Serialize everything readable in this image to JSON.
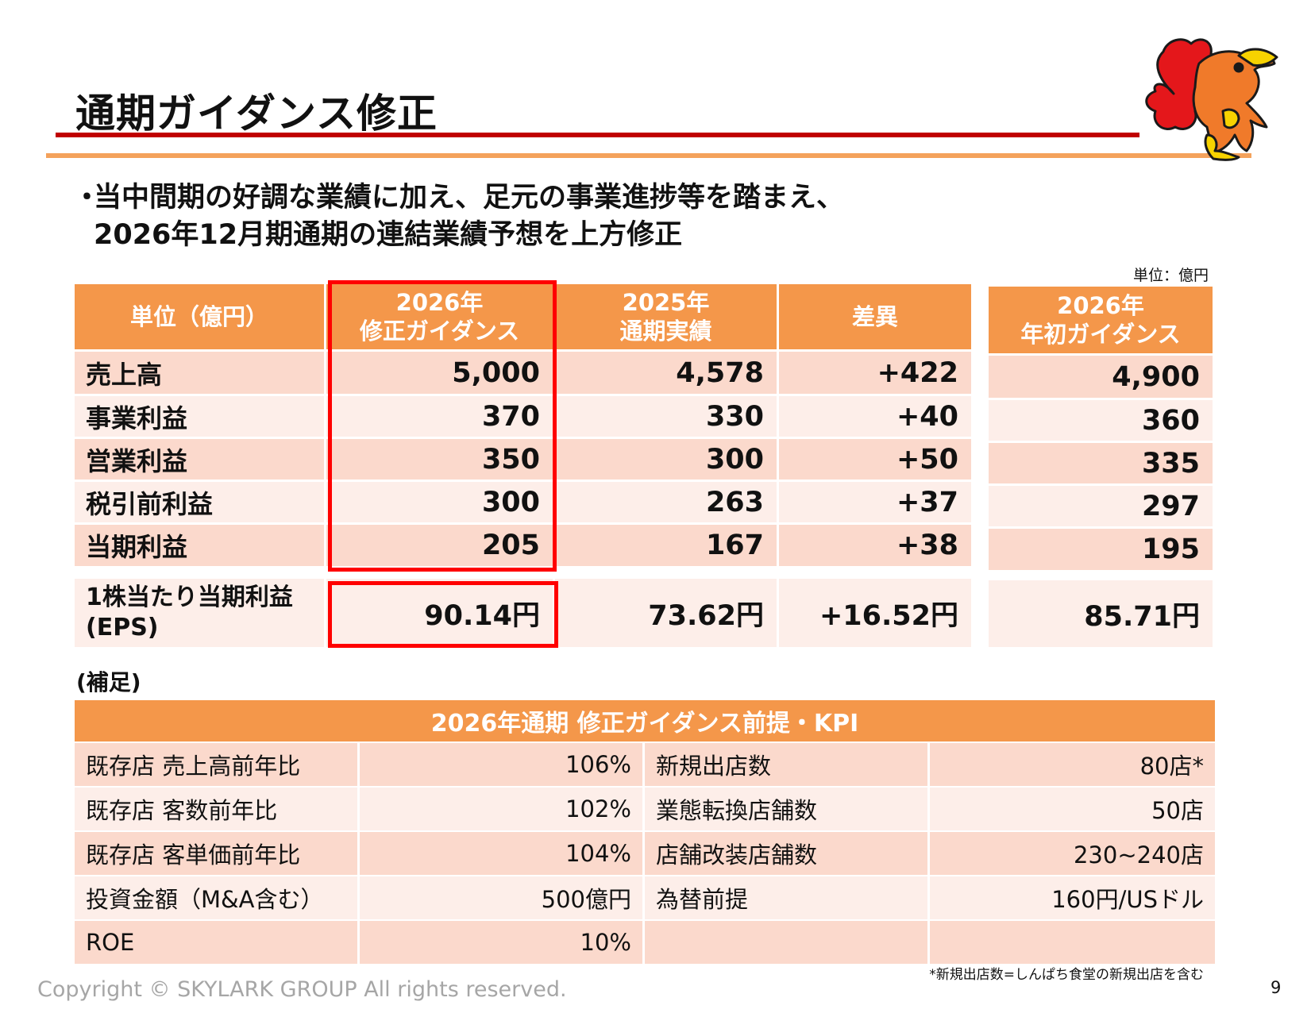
{
  "title": "通期ガイダンス修正",
  "bullet": {
    "marker": "・",
    "line1": "当中間期の好調な業績に加え、足元の事業進捗等を踏まえ、",
    "line2": "2026年12月期通期の連結業績予想を上方修正"
  },
  "unit_note": "単位：億円",
  "main_table": {
    "headers": [
      {
        "line1": "単位（億円）",
        "line2": ""
      },
      {
        "line1": "2026年",
        "line2": "修正ガイダンス"
      },
      {
        "line1": "2025年",
        "line2": "通期実績"
      },
      {
        "line1": "差異",
        "line2": ""
      }
    ],
    "rows": [
      {
        "label": "売上高",
        "revised": "5,000",
        "actual": "4,578",
        "diff": "+422"
      },
      {
        "label": "事業利益",
        "revised": "370",
        "actual": "330",
        "diff": "+40"
      },
      {
        "label": "営業利益",
        "revised": "350",
        "actual": "300",
        "diff": "+50"
      },
      {
        "label": "税引前利益",
        "revised": "300",
        "actual": "263",
        "diff": "+37"
      },
      {
        "label": "当期利益",
        "revised": "205",
        "actual": "167",
        "diff": "+38"
      }
    ],
    "eps": {
      "label1": "1株当たり当期利益",
      "label2": "(EPS)",
      "revised": "90.14円",
      "actual": "73.62円",
      "diff": "+16.52円"
    }
  },
  "side_table": {
    "header_line1": "2026年",
    "header_line2": "年初ガイダンス",
    "values": [
      "4,900",
      "360",
      "335",
      "297",
      "195"
    ],
    "eps": "85.71円"
  },
  "hosoku": "(補足)",
  "kpi": {
    "title": "2026年通期 修正ガイダンス前提・KPI",
    "rows": [
      {
        "l1": "既存店 売上高前年比",
        "v1": "106%",
        "l2": "新規出店数",
        "v2": "80店*"
      },
      {
        "l1": "既存店 客数前年比",
        "v1": "102%",
        "l2": "業態転換店舗数",
        "v2": "50店"
      },
      {
        "l1": "既存店 客単価前年比",
        "v1": "104%",
        "l2": "店舗改装店舗数",
        "v2": "230~240店"
      },
      {
        "l1": "投資金額（M&A含む）",
        "v1": "500億円",
        "l2": "為替前提",
        "v2": "160円/USドル"
      },
      {
        "l1": "ROE",
        "v1": "10%",
        "l2": "",
        "v2": ""
      }
    ]
  },
  "footnote": "*新規出店数=しんぱち食堂の新規出店を含む",
  "copyright": "Copyright © SKYLARK GROUP All rights reserved.",
  "page_number": "9",
  "colors": {
    "header_orange": "#f4974a",
    "row_dark": "#fbd9cc",
    "row_light": "#fdeee9",
    "title_rule_red": "#c00000",
    "highlight_red": "#ff0000"
  }
}
